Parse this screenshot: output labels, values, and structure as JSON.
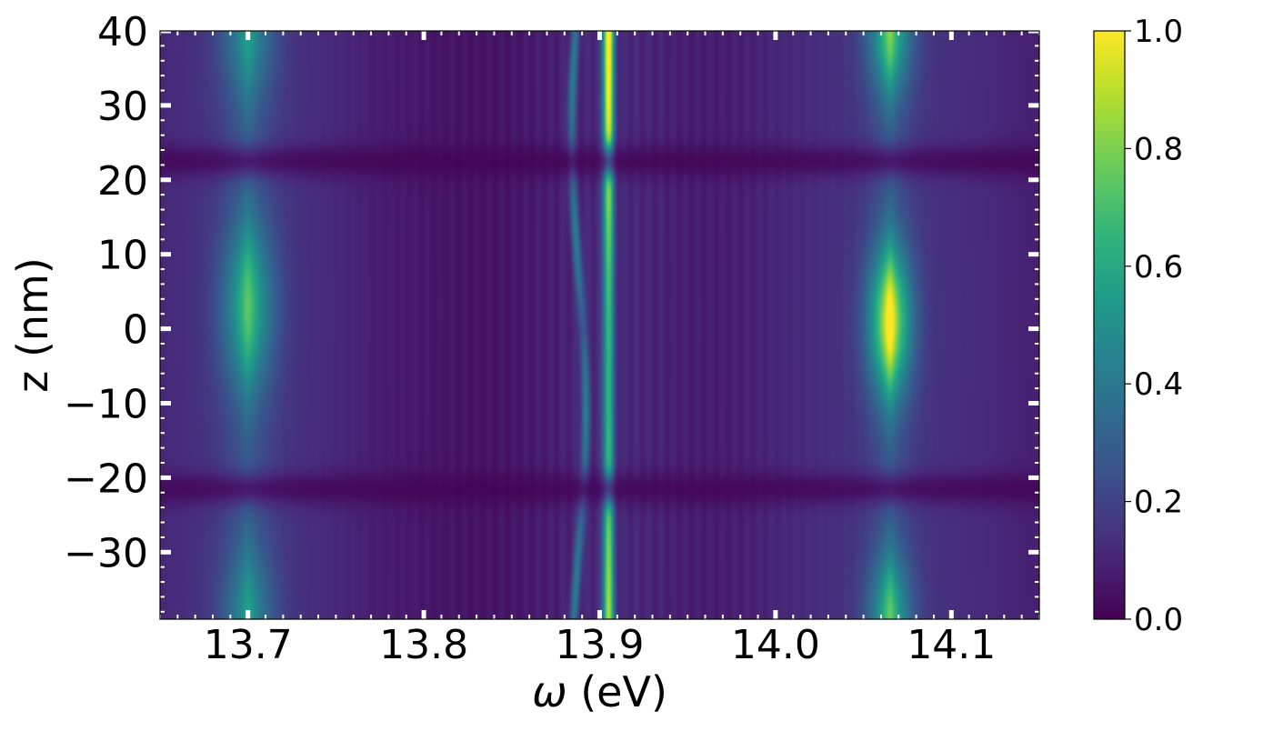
{
  "chart_data": {
    "type": "heatmap",
    "title": "",
    "xlabel_symbol": "ω",
    "xlabel_unit": "(eV)",
    "ylabel": "z (nm)",
    "xlim": [
      13.65,
      14.15
    ],
    "ylim": [
      -39,
      40
    ],
    "xticks": [
      {
        "value": 13.7,
        "label": "13.7"
      },
      {
        "value": 13.8,
        "label": "13.8"
      },
      {
        "value": 13.9,
        "label": "13.9"
      },
      {
        "value": 14.0,
        "label": "14.0"
      },
      {
        "value": 14.1,
        "label": "14.1"
      }
    ],
    "yticks": [
      {
        "value": 40,
        "label": "40"
      },
      {
        "value": 30,
        "label": "30"
      },
      {
        "value": 20,
        "label": "20"
      },
      {
        "value": 10,
        "label": "10"
      },
      {
        "value": 0,
        "label": "0"
      },
      {
        "value": -10,
        "label": "−10"
      },
      {
        "value": -20,
        "label": "−20"
      },
      {
        "value": -30,
        "label": "−30"
      }
    ],
    "colorbar": {
      "colormap": "viridis",
      "range": [
        0.0,
        1.0
      ],
      "ticks": [
        {
          "value": 0.0,
          "label": "0.0"
        },
        {
          "value": 0.2,
          "label": "0.2"
        },
        {
          "value": 0.4,
          "label": "0.4"
        },
        {
          "value": 0.6,
          "label": "0.6"
        },
        {
          "value": 0.8,
          "label": "0.8"
        },
        {
          "value": 1.0,
          "label": "1.0"
        }
      ]
    },
    "features": [
      {
        "kind": "resonance",
        "omega": 13.7,
        "peak_intensity": 0.55
      },
      {
        "kind": "resonance",
        "omega": 13.89,
        "peak_intensity": 0.45
      },
      {
        "kind": "resonance",
        "omega": 13.905,
        "peak_intensity": 1.0
      },
      {
        "kind": "resonance",
        "omega": 14.065,
        "peak_intensity": 0.95
      },
      {
        "kind": "node",
        "z": 22.5
      },
      {
        "kind": "node",
        "z": -21.5
      }
    ]
  }
}
